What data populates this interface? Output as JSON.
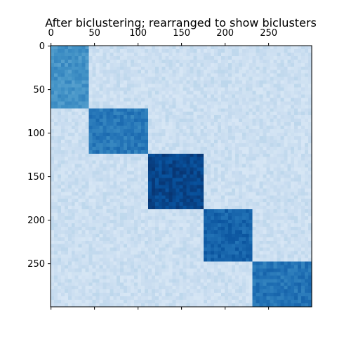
{
  "chart_data": {
    "type": "heatmap",
    "title": "After biclustering; rearranged to show biclusters",
    "xlabel": "",
    "ylabel": "",
    "n_rows": 300,
    "n_cols": 300,
    "x_ticks": [
      0,
      50,
      100,
      150,
      200,
      250
    ],
    "y_ticks": [
      0,
      50,
      100,
      150,
      200,
      250
    ],
    "x_axis_position": "top",
    "grid": false,
    "colormap": "Blues",
    "background_value": 0.22,
    "noise_amplitude": 0.06,
    "blocks": [
      {
        "rows": [
          0,
          71
        ],
        "cols": [
          0,
          44
        ],
        "value": 0.62
      },
      {
        "rows": [
          72,
          124
        ],
        "cols": [
          45,
          111
        ],
        "value": 0.72
      },
      {
        "rows": [
          125,
          186
        ],
        "cols": [
          112,
          174
        ],
        "value": 0.92
      },
      {
        "rows": [
          187,
          249
        ],
        "cols": [
          175,
          231
        ],
        "value": 0.8
      },
      {
        "rows": [
          250,
          299
        ],
        "cols": [
          232,
          299
        ],
        "value": 0.74
      }
    ],
    "colors": {
      "background": "#cfe1f2",
      "block_light": "#3a8ac2",
      "block_dark": "#08519c",
      "axis": "#000000"
    }
  }
}
